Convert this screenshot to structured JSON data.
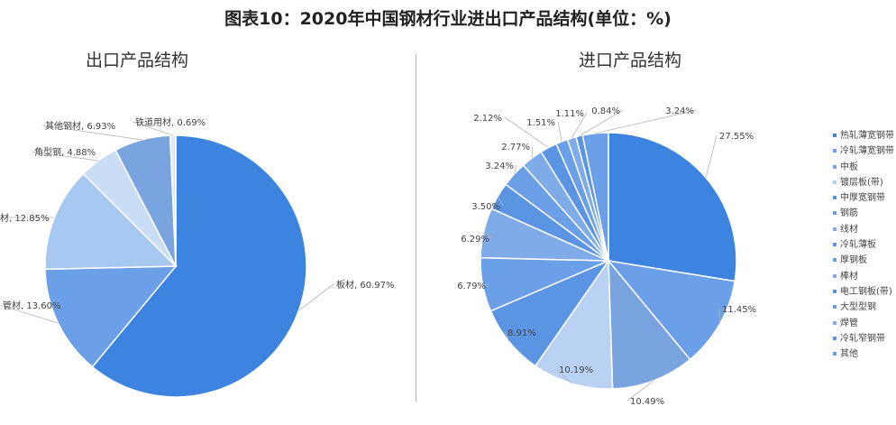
{
  "figure_title": "图表10：2020年中国钢材行业进出口产品结构(单位：%)",
  "chart_data": [
    {
      "type": "pie",
      "title": "出口产品结构",
      "slices": [
        {
          "label": "板材",
          "value": 60.97,
          "text": "板材, 60.97%",
          "color": "#3d83e0"
        },
        {
          "label": "管材",
          "value": 13.6,
          "text": "管材, 13.60%",
          "color": "#6b9fe8"
        },
        {
          "label": "棒线材",
          "value": 12.85,
          "text": "材, 12.85%",
          "color": "#a7c8f1"
        },
        {
          "label": "角型钢",
          "value": 4.88,
          "text": "角型钢, 4.88%",
          "color": "#c9ddf7"
        },
        {
          "label": "其他钢材",
          "value": 6.93,
          "text": "其他钢材, 6.93%",
          "color": "#79a4e0"
        },
        {
          "label": "铁道用材",
          "value": 0.69,
          "text": "铁道用材, 0.69%",
          "color": "#dfe9f8"
        }
      ]
    },
    {
      "type": "pie",
      "title": "进口产品结构",
      "slices": [
        {
          "label": "热轧薄宽钢带",
          "value": 27.55,
          "text": "27.55%",
          "color": "#3d83e0"
        },
        {
          "label": "冷轧薄宽钢带",
          "value": 11.45,
          "text": "11.45%",
          "color": "#6b9fe8"
        },
        {
          "label": "中板",
          "value": 10.49,
          "text": "10.49%",
          "color": "#79a4e0"
        },
        {
          "label": "镀层板(带)",
          "value": 10.19,
          "text": "10.19%",
          "color": "#b9d2f4"
        },
        {
          "label": "中厚宽钢带",
          "value": 8.91,
          "text": "8.91%",
          "color": "#5b94e3"
        },
        {
          "label": "钢筋",
          "value": 6.79,
          "text": "6.79%",
          "color": "#6b9fe8"
        },
        {
          "label": "线材",
          "value": 6.29,
          "text": "6.29%",
          "color": "#7fabe9"
        },
        {
          "label": "冷轧薄板",
          "value": 3.5,
          "text": "3.50%",
          "color": "#5b94e3"
        },
        {
          "label": "厚钢板",
          "value": 3.24,
          "text": "3.24%",
          "color": "#6b9fe8"
        },
        {
          "label": "棒材",
          "value": 2.77,
          "text": "2.77%",
          "color": "#7fabe9"
        },
        {
          "label": "电工钢板(带)",
          "value": 2.12,
          "text": "2.12%",
          "color": "#5b94e3"
        },
        {
          "label": "大型型钢",
          "value": 1.51,
          "text": "1.51%",
          "color": "#6b9fe8"
        },
        {
          "label": "焊管",
          "value": 1.11,
          "text": "1.11%",
          "color": "#7fabe9"
        },
        {
          "label": "冷轧窄钢带",
          "value": 0.84,
          "text": "0.84%",
          "color": "#5b94e3"
        },
        {
          "label": "其他",
          "value": 3.24,
          "text": "3.24%",
          "color": "#6b9fe8"
        }
      ]
    }
  ],
  "legend": [
    "热轧薄宽钢带",
    "冷轧薄宽钢带",
    "中板",
    "镀层板(带)",
    "中厚宽钢带",
    "钢筋",
    "线材",
    "冷轧薄板",
    "厚钢板",
    "棒材",
    "电工钢板(带)",
    "大型型钢",
    "焊管",
    "冷轧窄钢带",
    "其他"
  ]
}
